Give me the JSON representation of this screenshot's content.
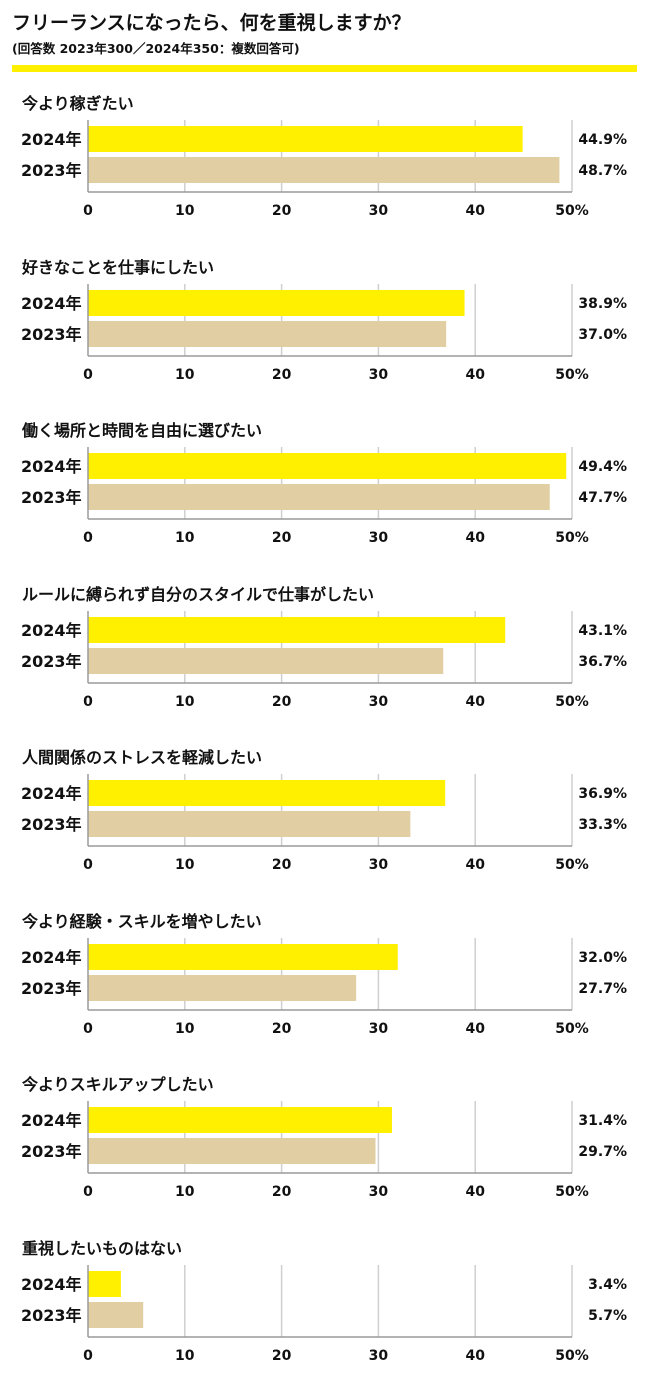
{
  "header": {
    "title": "フリーランスになったら、何を重視しますか？",
    "subtitle": "(回答数 2023年300／2024年350：複数回答可)"
  },
  "colors": {
    "y2024": "#fff000",
    "y2023": "#e1cfa3",
    "grid": "#cfcfcf",
    "axis": "#9a9a9a",
    "rule": "#fff000"
  },
  "chart_data": {
    "type": "bar",
    "orientation": "horizontal",
    "title": "フリーランスになったら、何を重視しますか？",
    "subtitle": "(回答数 2023年300／2024年350：複数回答可)",
    "series_names": [
      "2024年",
      "2023年"
    ],
    "xlim": [
      0,
      50
    ],
    "ticks": [
      "0",
      "10",
      "20",
      "30",
      "40",
      "50%"
    ],
    "tick_values": [
      0,
      10,
      20,
      30,
      40,
      50
    ],
    "grid": true,
    "panels": [
      {
        "category": "今より稼ぎたい",
        "values": [
          44.9,
          48.7
        ],
        "labels": [
          "44.9%",
          "48.7%"
        ]
      },
      {
        "category": "好きなことを仕事にしたい",
        "values": [
          38.9,
          37.0
        ],
        "labels": [
          "38.9%",
          "37.0%"
        ]
      },
      {
        "category": "働く場所と時間を自由に選びたい",
        "values": [
          49.4,
          47.7
        ],
        "labels": [
          "49.4%",
          "47.7%"
        ]
      },
      {
        "category": "ルールに縛られず自分のスタイルで仕事がしたい",
        "values": [
          43.1,
          36.7
        ],
        "labels": [
          "43.1%",
          "36.7%"
        ]
      },
      {
        "category": "人間関係のストレスを軽減したい",
        "values": [
          36.9,
          33.3
        ],
        "labels": [
          "36.9%",
          "33.3%"
        ]
      },
      {
        "category": "今より経験・スキルを増やしたい",
        "values": [
          32.0,
          27.7
        ],
        "labels": [
          "32.0%",
          "27.7%"
        ]
      },
      {
        "category": "今よりスキルアップしたい",
        "values": [
          31.4,
          29.7
        ],
        "labels": [
          "31.4%",
          "29.7%"
        ]
      },
      {
        "category": "重視したいものはない",
        "values": [
          3.4,
          5.7
        ],
        "labels": [
          "3.4%",
          "5.7%"
        ]
      }
    ]
  }
}
